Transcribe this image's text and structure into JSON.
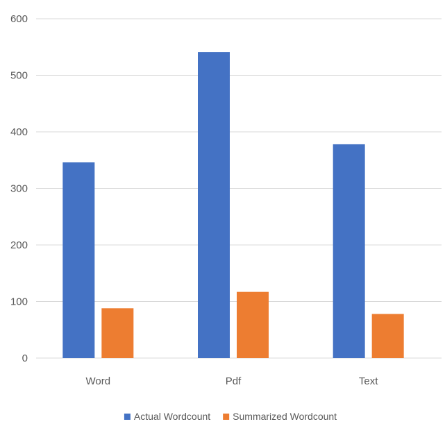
{
  "chart_data": {
    "type": "bar",
    "categories": [
      "Word",
      "Pdf",
      "Text"
    ],
    "series": [
      {
        "name": "Actual Wordcount",
        "values": [
          346,
          541,
          378
        ],
        "color": "#4472C4"
      },
      {
        "name": "Summarized Wordcount",
        "values": [
          88,
          117,
          78
        ],
        "color": "#ED7D31"
      }
    ],
    "ylim": [
      0,
      600
    ],
    "yticks": [
      0,
      100,
      200,
      300,
      400,
      500,
      600
    ],
    "title": "",
    "xlabel": "",
    "ylabel": "",
    "grid": true,
    "gridline_color": "#D9D9D9",
    "legend_position": "bottom"
  }
}
